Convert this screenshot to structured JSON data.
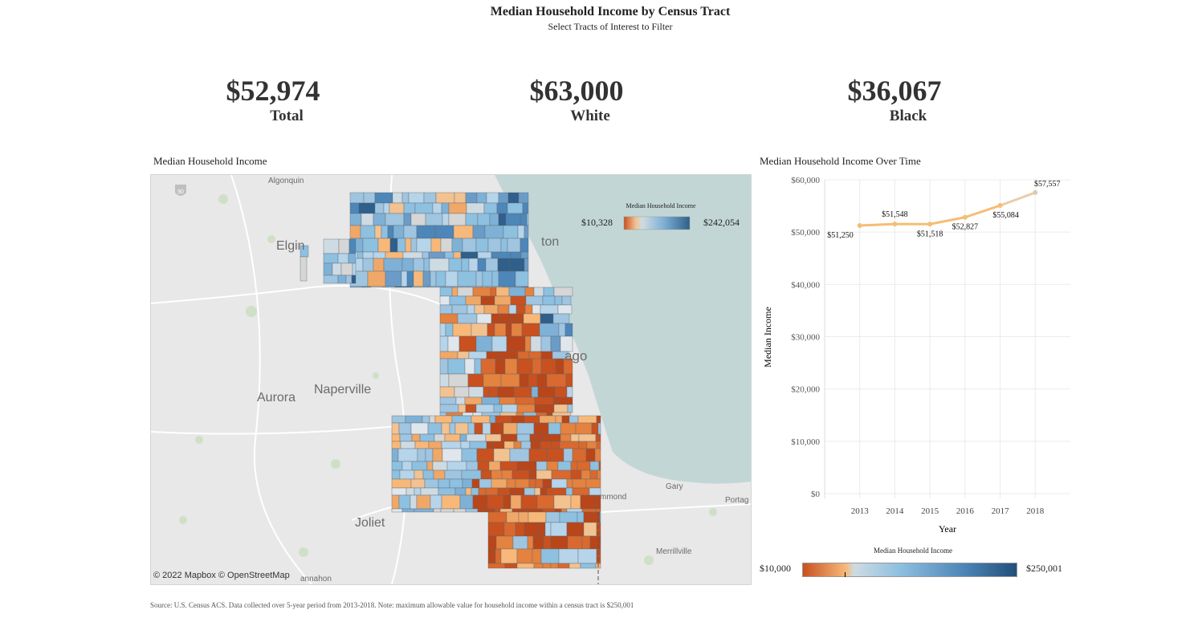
{
  "header": {
    "title": "Median Household Income by Census Tract",
    "subtitle": "Select Tracts of Interest to Filter"
  },
  "kpis": [
    {
      "value": "$52,974",
      "label": "Total"
    },
    {
      "value": "$63,000",
      "label": "White"
    },
    {
      "value": "$36,067",
      "label": "Black"
    }
  ],
  "map": {
    "title": "Median Household Income",
    "legend": {
      "title": "Median Household Income",
      "min": "$10,328",
      "max": "$242,054"
    },
    "cities": {
      "algonquin": "Algonquin",
      "elgin": "Elgin",
      "evanston": "ton",
      "chicago": "ago",
      "aurora": "Aurora",
      "naperville": "Naperville",
      "joliet": "Joliet",
      "gary": "Gary",
      "hammond": "mmond",
      "portage": "Portag",
      "merrillville": "Merrillville",
      "manhattan": "annahon"
    },
    "highway_shield": "90",
    "attribution": "© 2022 Mapbox  © OpenStreetMap",
    "colors": {
      "low": "#c8511f",
      "mid": "#f2c291",
      "neutral": "#d6d6d6",
      "light_blue": "#9fc5e0",
      "high": "#2f5f8a",
      "water": "#c3d6d6"
    }
  },
  "trend": {
    "title": "Median Household Income Over Time",
    "legend": {
      "title": "Median Household Income",
      "min": "$10,000",
      "max": "$250,001"
    }
  },
  "chart_data": {
    "type": "line",
    "title": "Median Household Income Over Time",
    "xlabel": "Year",
    "ylabel": "Median Income",
    "x": [
      2013,
      2014,
      2015,
      2016,
      2017,
      2018
    ],
    "values": [
      51250,
      51548,
      51518,
      52827,
      55084,
      57557
    ],
    "data_labels": [
      "$51,250",
      "$51,548",
      "$51,518",
      "$52,827",
      "$55,084",
      "$57,557"
    ],
    "yticks": [
      "$0",
      "$10,000",
      "$20,000",
      "$30,000",
      "$40,000",
      "$50,000",
      "$60,000"
    ],
    "xticks": [
      "2013",
      "2014",
      "2015",
      "2016",
      "2017",
      "2018"
    ],
    "ylim": [
      0,
      60000
    ],
    "grid": true,
    "line_color": "#f5bd75"
  },
  "footer": {
    "source": "Source: U.S. Census ACS. Data collected over 5-year period from 2013-2018. Note: maximum allowable value for household income within a census tract is $250,001"
  }
}
